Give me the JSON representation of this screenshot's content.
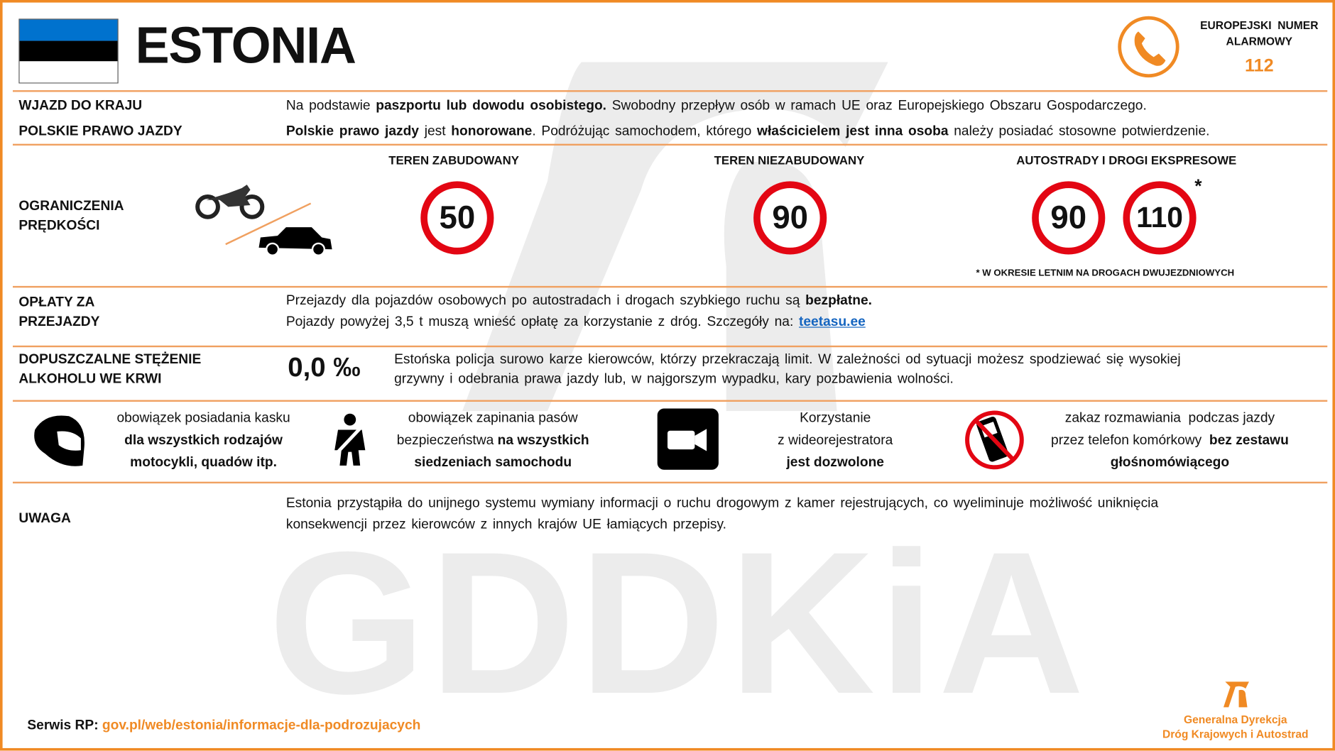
{
  "header": {
    "country": "ESTONIA",
    "flag_colors": [
      "#0072CE",
      "#000000",
      "#FFFFFF"
    ],
    "emergency_label_1": "EUROPEJSKI  NUMER",
    "emergency_label_2": "ALARMOWY",
    "emergency_number": "112",
    "accent": "#F08A24"
  },
  "entry": {
    "label": "WJAZD DO KRAJU",
    "t1": "Na podstawie ",
    "b1": "paszportu lub dowodu osobistego.",
    "t2": " Swobodny przepływ osób w ramach UE oraz Europejskiego Obszaru Gospodarczego."
  },
  "license": {
    "label": "POLSKIE PRAWO JAZDY",
    "b1": "Polskie prawo jazdy",
    "t1": " jest ",
    "b2": "honorowane",
    "t2": ". Podróżując samochodem,  którego ",
    "b3": "właścicielem jest inna osoba",
    "t3": " należy posiadać stosowne potwierdzenie."
  },
  "speed": {
    "label_1": "OGRANICZENIA",
    "label_2": "PRĘDKOŚCI",
    "urban": {
      "title": "TEREN ZABUDOWANY",
      "limit": "50"
    },
    "rural": {
      "title": "TEREN NIEZABUDOWANY",
      "limit": "90"
    },
    "motorway": {
      "title": "AUTOSTRADY I DROGI EKSPRESOWE",
      "limits": [
        "90",
        "110"
      ],
      "asterisk": "*"
    },
    "footnote": "* W OKRESIE LETNIM NA DROGACH DWUJEZDNIOWYCH"
  },
  "tolls": {
    "label_1": "OPŁATY ZA",
    "label_2": "PRZEJAZDY",
    "l1": "Przejazdy dla pojazdów osobowych  po autostradach i drogach szybkiego ruchu są ",
    "l1b": "bezpłatne.",
    "l2": "Pojazdy powyżej 3,5 t muszą wnieść opłatę za korzystanie z dróg. Szczegóły na: ",
    "link": "teetasu.ee"
  },
  "alcohol": {
    "label_1": "DOPUSZCZALNE STĘŻENIE",
    "label_2": "ALKOHOLU WE KRWI",
    "value": "0,0 ‰",
    "l1": "Estońska policja surowo karze kierowców, którzy przekraczają limit. W zależności od sytuacji możesz spodziewać się wysokiej",
    "l2": "grzywny i odebrania prawa jazdy lub, w najgorszym wypadku, kary pozbawienia wolności."
  },
  "rules": [
    {
      "icon": "helmet-icon",
      "l1": "obowiązek posiadania kasku",
      "l2": "dla wszystkich rodzajów",
      "l3": "motocykli, quadów itp."
    },
    {
      "icon": "seatbelt-icon",
      "l1": "obowiązek zapinania pasów",
      "l2a": "bezpieczeństwa ",
      "l2b": "na wszystkich",
      "l3": "siedzeniach samochodu"
    },
    {
      "icon": "dashcam-icon",
      "l1": "Korzystanie",
      "l2": "z wideorejestratora",
      "l3": "jest dozwolone"
    },
    {
      "icon": "no-phone-icon",
      "l1": "zakaz rozmawiania  podczas jazdy",
      "l2a": "przez telefon komórkowy  ",
      "l2b": "bez zestawu",
      "l3": "głośnomówiącego"
    }
  ],
  "note": {
    "label": "UWAGA",
    "l1": "Estonia przystąpiła do unijnego systemu wymiany informacji o ruchu drogowym  z kamer rejestrujących, co wyeliminuje możliwość uniknięcia",
    "l2": "konsekwencji  przez kierowców z innych krajów UE łamiących przepisy."
  },
  "footer": {
    "service_label": "Serwis RP:",
    "service_link": "gov.pl/web/estonia/informacje-dla-podrozujacych",
    "org_1": "Generalna Dyrekcja",
    "org_2": "Dróg Krajowych i Autostrad",
    "watermark": "GDDKiA"
  }
}
